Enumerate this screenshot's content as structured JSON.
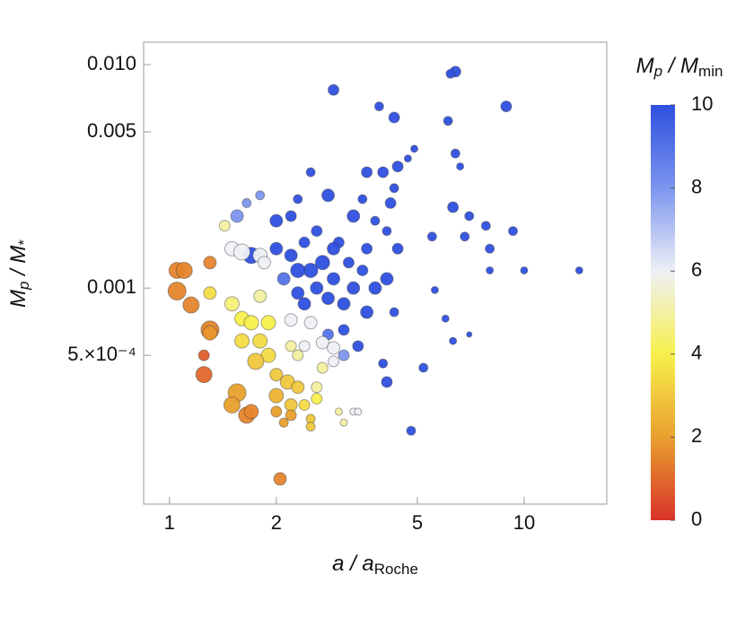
{
  "chart_data": {
    "type": "scatter",
    "x_label": [
      "a / a",
      "Roche"
    ],
    "y_label": [
      "M",
      "p",
      " / M",
      "*"
    ],
    "xlog": true,
    "ylog": true,
    "xlim": [
      0.845,
      17.1
    ],
    "ylim": [
      0.000108,
      0.0126
    ],
    "xticks": [
      1,
      2,
      5,
      10
    ],
    "yticks": [
      {
        "value": 0.01,
        "label": "0.010"
      },
      0.005,
      0.001,
      {
        "value": 0.0005,
        "label": "5.×10⁻⁴"
      }
    ],
    "colorbar": {
      "label": [
        "M",
        "p",
        " / M",
        "min"
      ],
      "lim": [
        0,
        10
      ],
      "ticks": [
        0,
        2,
        4,
        6,
        8,
        10
      ],
      "stops": [
        {
          "value": 0,
          "color": "#d8322a"
        },
        {
          "value": 2,
          "color": "#e9a02e"
        },
        {
          "value": 4,
          "color": "#f7f04c"
        },
        {
          "value": 6,
          "color": "#eef0f6"
        },
        {
          "value": 8,
          "color": "#7c95ee"
        },
        {
          "value": 10,
          "color": "#2f50e0"
        }
      ]
    },
    "x": [
      6.4,
      6.2,
      2.9,
      8.9,
      3.9,
      4.3,
      6.1,
      4.9,
      4.7,
      6.4,
      6.6,
      4.4,
      4.0,
      3.6,
      2.5,
      4.3,
      2.8,
      2.3,
      1.8,
      3.5,
      4.2,
      6.3,
      7.0,
      7.8,
      9.3,
      5.5,
      6.8,
      8.0,
      3.3,
      3.8,
      4.1,
      4.4,
      3.6,
      2.2,
      2.0,
      2.6,
      3.0,
      2.9,
      2.4,
      2.2,
      2.0,
      2.7,
      2.5,
      2.3,
      3.2,
      3.5,
      4.1,
      3.8,
      3.3,
      2.9,
      2.6,
      2.3,
      2.1,
      2.4,
      2.8,
      3.1,
      3.6,
      4.3,
      5.6,
      6.0,
      6.3,
      7.0,
      8.0,
      10.0,
      14.3,
      3.1,
      3.4,
      2.8,
      3.1,
      4.0,
      4.1,
      5.2,
      4.8,
      1.7,
      1.55,
      1.65,
      1.5,
      1.6,
      1.8,
      1.85,
      1.8,
      2.2,
      2.5,
      2.7,
      2.9,
      2.9,
      2.7,
      2.2,
      2.4,
      2.3,
      3.0,
      3.1,
      3.3,
      3.4,
      2.6,
      1.43,
      1.3,
      1.5,
      1.6,
      1.7,
      1.9,
      1.8,
      1.6,
      1.9,
      1.75,
      2.0,
      2.15,
      2.3,
      2.0,
      2.2,
      2.4,
      2.6,
      2.5,
      2.2,
      2.1,
      2.5,
      2.0,
      1.05,
      1.1,
      1.05,
      1.15,
      1.3,
      1.3,
      1.3,
      1.25,
      1.55,
      1.5,
      1.65,
      1.7,
      1.25,
      2.05
    ],
    "y": [
      0.0093,
      0.0091,
      0.0077,
      0.0065,
      0.0065,
      0.0058,
      0.0056,
      0.0042,
      0.0038,
      0.004,
      0.0035,
      0.0035,
      0.0033,
      0.0033,
      0.0033,
      0.0028,
      0.0026,
      0.0025,
      0.0026,
      0.0025,
      0.0024,
      0.0023,
      0.0021,
      0.0019,
      0.0018,
      0.0017,
      0.0017,
      0.0015,
      0.0021,
      0.002,
      0.0018,
      0.0015,
      0.0015,
      0.0021,
      0.002,
      0.0018,
      0.0016,
      0.0015,
      0.0016,
      0.0014,
      0.0015,
      0.0013,
      0.0012,
      0.0012,
      0.0013,
      0.0012,
      0.0011,
      0.001,
      0.001,
      0.0011,
      0.001,
      0.00095,
      0.0011,
      0.00085,
      0.0009,
      0.00085,
      0.00078,
      0.00078,
      0.00098,
      0.00073,
      0.00058,
      0.00062,
      0.0012,
      0.0012,
      0.0012,
      0.00065,
      0.00055,
      0.00062,
      0.0005,
      0.00046,
      0.00038,
      0.00044,
      0.00023,
      0.0014,
      0.0021,
      0.0024,
      0.0015,
      0.00145,
      0.0014,
      0.0013,
      0.00092,
      0.00072,
      0.0007,
      0.00057,
      0.00054,
      0.00047,
      0.00044,
      0.00055,
      0.00055,
      0.0005,
      0.00028,
      0.00025,
      0.00028,
      0.00028,
      0.00036,
      0.0019,
      0.00095,
      0.00085,
      0.00073,
      0.0007,
      0.0007,
      0.00058,
      0.00058,
      0.0005,
      0.00047,
      0.00041,
      0.00038,
      0.00036,
      0.00033,
      0.0003,
      0.0003,
      0.00032,
      0.00026,
      0.00027,
      0.00025,
      0.00024,
      0.00028,
      0.0012,
      0.0012,
      0.00097,
      0.00084,
      0.0013,
      0.00065,
      0.00063,
      0.00041,
      0.00034,
      0.0003,
      0.00027,
      0.00028,
      0.0005,
      0.00014
    ],
    "color_values": [
      10,
      10,
      10,
      10,
      10,
      10,
      10,
      10,
      10,
      10,
      10,
      10,
      10,
      10,
      10,
      10,
      10,
      10,
      8,
      10,
      10,
      10,
      10,
      10,
      10,
      10,
      10,
      10,
      10,
      10,
      10,
      10,
      10,
      10,
      10,
      10,
      10,
      10,
      10,
      10,
      10,
      10,
      10,
      10,
      10,
      10,
      10,
      10,
      10,
      10,
      10,
      10,
      9,
      10,
      10,
      10,
      10,
      10,
      10,
      10,
      10,
      10,
      10,
      10,
      10,
      10,
      10,
      9,
      8,
      10,
      10,
      10,
      10,
      10,
      8,
      8,
      6,
      6,
      6,
      6,
      5,
      6,
      6,
      6,
      6,
      6,
      5,
      5,
      6,
      5,
      5,
      5,
      6,
      6,
      5,
      5,
      3.5,
      4.5,
      4,
      4,
      4,
      3.5,
      3.5,
      3.5,
      3,
      3,
      3,
      3,
      2.5,
      3,
      3.5,
      4,
      3,
      2,
      2,
      3,
      2,
      1.5,
      1.5,
      1.5,
      1.5,
      1.5,
      1.5,
      1.8,
      1,
      2,
      2,
      1.5,
      1.5,
      0.8,
      1.5
    ],
    "sizes": [
      6,
      5,
      6,
      6,
      5,
      6,
      5,
      4,
      4,
      5,
      4,
      6,
      6,
      6,
      5,
      5,
      7,
      5,
      5,
      5,
      6,
      6,
      5,
      5,
      5,
      5,
      5,
      5,
      7,
      5,
      5,
      6,
      6,
      6,
      7,
      6,
      6,
      7,
      6,
      7,
      7,
      8,
      8,
      8,
      6,
      6,
      7,
      7,
      7,
      7,
      7,
      7,
      7,
      7,
      7,
      7,
      7,
      5,
      4,
      4,
      4,
      3,
      4,
      4,
      4,
      6,
      6,
      6,
      6,
      5,
      6,
      5,
      5,
      9,
      7,
      5,
      8,
      9,
      8,
      7,
      7,
      7,
      7,
      7,
      7,
      6,
      6,
      6,
      6,
      6,
      4,
      4,
      4,
      4,
      6,
      6,
      7,
      8,
      8,
      8,
      8,
      8,
      8,
      8,
      9,
      7,
      8,
      7,
      8,
      7,
      6,
      6,
      5,
      6,
      5,
      5,
      6,
      9,
      9,
      10,
      9,
      7,
      10,
      8,
      9,
      10,
      9,
      9,
      8,
      6,
      7
    ]
  }
}
